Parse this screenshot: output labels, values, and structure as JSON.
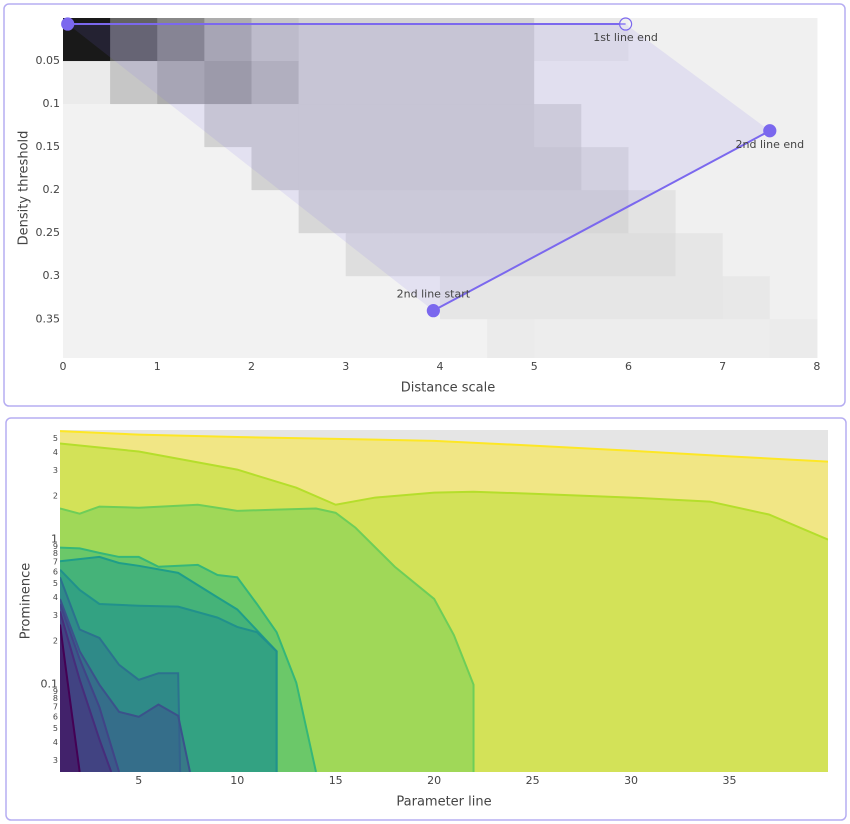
{
  "chart_data": [
    {
      "type": "heatmap",
      "xlabel": "Distance scale",
      "ylabel": "Density threshold",
      "xlim": [
        0,
        8.16
      ],
      "ylim": [
        0.395,
        0
      ],
      "xticks": [
        0,
        1,
        2,
        3,
        4,
        5,
        6,
        7,
        8
      ],
      "yticks": [
        0.05,
        0.1,
        0.15,
        0.2,
        0.25,
        0.3,
        0.35
      ],
      "xbins": [
        0,
        0.5,
        1,
        1.5,
        2,
        2.5,
        3,
        3.5,
        4,
        4.5,
        5,
        5.5,
        6,
        6.5,
        7,
        7.5,
        8
      ],
      "ybins": [
        0,
        0.05,
        0.1,
        0.15,
        0.2,
        0.25,
        0.3,
        0.35,
        0.4
      ],
      "z": [
        [
          0.9,
          0.6,
          0.45,
          0.3,
          0.2,
          0.15,
          0.15,
          0.15,
          0.15,
          0.15,
          0.06,
          0.06,
          0.03,
          0.03,
          0.03,
          0.03
        ],
        [
          0.05,
          0.2,
          0.3,
          0.35,
          0.25,
          0.15,
          0.15,
          0.15,
          0.15,
          0.15,
          0.03,
          0.03,
          0.03,
          0.03,
          0.03,
          0.03
        ],
        [
          0.02,
          0.02,
          0.02,
          0.15,
          0.15,
          0.15,
          0.15,
          0.15,
          0.15,
          0.15,
          0.12,
          0.03,
          0.03,
          0.03,
          0.03,
          0.03
        ],
        [
          0.02,
          0.02,
          0.02,
          0.02,
          0.15,
          0.15,
          0.15,
          0.15,
          0.15,
          0.15,
          0.15,
          0.1,
          0.03,
          0.03,
          0.03,
          0.03
        ],
        [
          0.02,
          0.02,
          0.02,
          0.02,
          0.02,
          0.13,
          0.13,
          0.13,
          0.13,
          0.13,
          0.13,
          0.13,
          0.08,
          0.03,
          0.03,
          0.03
        ],
        [
          0.02,
          0.02,
          0.02,
          0.02,
          0.02,
          0.02,
          0.1,
          0.1,
          0.1,
          0.1,
          0.1,
          0.1,
          0.1,
          0.07,
          0.03,
          0.03
        ],
        [
          0.02,
          0.02,
          0.02,
          0.02,
          0.02,
          0.02,
          0.02,
          0.02,
          0.07,
          0.07,
          0.07,
          0.07,
          0.07,
          0.07,
          0.06,
          0.03
        ],
        [
          0.02,
          0.02,
          0.02,
          0.02,
          0.02,
          0.02,
          0.02,
          0.02,
          0.02,
          0.05,
          0.04,
          0.04,
          0.04,
          0.04,
          0.04,
          0.05
        ]
      ],
      "colorscale": [
        "#f7f7f7",
        "#000000"
      ],
      "line_color": "#7b68ee",
      "lines": [
        {
          "x": [
            0.05,
            5.97
          ],
          "y": [
            0.007,
            0.007
          ],
          "symbols": [
            "circle",
            "circle-open"
          ],
          "end_label": "1st line end"
        },
        {
          "x": [
            3.93,
            7.5
          ],
          "y": [
            0.34,
            0.131
          ],
          "symbols": [
            "circle",
            "circle"
          ],
          "start_label": "2nd line start",
          "end_label": "2nd line end"
        }
      ]
    },
    {
      "type": "area",
      "log_y": true,
      "plot_bg": "#e5e5e5",
      "xlabel": "Parameter line",
      "ylabel": "Prominence",
      "xlim": [
        1,
        40
      ],
      "ylim": [
        0.025,
        5.7
      ],
      "xticks": [
        5,
        10,
        15,
        20,
        25,
        30,
        35
      ],
      "yticks": [
        5,
        4,
        3,
        2,
        1,
        {
          "value": 0.9,
          "label": "9"
        },
        {
          "value": 0.8,
          "label": "8"
        },
        {
          "value": 0.7,
          "label": "7"
        },
        {
          "value": 0.6,
          "label": "6"
        },
        {
          "value": 0.5,
          "label": "5"
        },
        {
          "value": 0.4,
          "label": "4"
        },
        {
          "value": 0.3,
          "label": "3"
        },
        {
          "value": 0.2,
          "label": "2"
        },
        0.1,
        {
          "value": 0.09,
          "label": "9"
        },
        {
          "value": 0.08,
          "label": "8"
        },
        {
          "value": 0.07,
          "label": "7"
        },
        {
          "value": 0.06,
          "label": "6"
        },
        {
          "value": 0.05,
          "label": "5"
        },
        {
          "value": 0.04,
          "label": "4"
        },
        {
          "value": 0.03,
          "label": "3"
        }
      ],
      "series": [
        {
          "color": "#fde725",
          "x": [
            1,
            5,
            10,
            15,
            20,
            25,
            30,
            35,
            40
          ],
          "values": [
            5.6,
            5.3,
            5.1,
            4.95,
            4.8,
            4.45,
            4.1,
            3.75,
            3.45
          ]
        },
        {
          "color": "#b5de2b",
          "x": [
            1,
            5,
            10,
            13,
            15,
            17,
            20,
            22,
            25,
            30,
            34,
            37,
            40
          ],
          "values": [
            4.6,
            4.05,
            3.04,
            2.28,
            1.74,
            1.95,
            2.11,
            2.14,
            2.07,
            1.95,
            1.83,
            1.49,
            1.0
          ]
        },
        {
          "color": "#6ece58",
          "x": [
            1,
            2,
            3,
            5,
            8,
            10,
            12,
            14,
            15,
            16,
            18,
            20,
            21,
            22,
            22
          ],
          "values": [
            1.64,
            1.51,
            1.69,
            1.66,
            1.74,
            1.58,
            1.61,
            1.64,
            1.53,
            1.21,
            0.65,
            0.39,
            0.22,
            0.1,
            0.025
          ]
        },
        {
          "color": "#35b779",
          "x": [
            1,
            2,
            3,
            4,
            5,
            6,
            8,
            9,
            10,
            11,
            12,
            13,
            14
          ],
          "values": [
            0.88,
            0.87,
            0.81,
            0.76,
            0.76,
            0.65,
            0.67,
            0.57,
            0.55,
            0.36,
            0.23,
            0.103,
            0.025
          ]
        },
        {
          "color": "#1f9e89",
          "x": [
            1,
            3,
            4,
            5,
            7,
            9,
            10,
            12,
            12
          ],
          "values": [
            0.71,
            0.76,
            0.69,
            0.66,
            0.59,
            0.4,
            0.33,
            0.17,
            0.025
          ]
        },
        {
          "color": "#21918c",
          "x": [
            1,
            2,
            3,
            5,
            7,
            9,
            10,
            11,
            12,
            12
          ],
          "values": [
            0.62,
            0.45,
            0.36,
            0.35,
            0.345,
            0.29,
            0.25,
            0.23,
            0.17,
            0.025
          ]
        },
        {
          "color": "#2c728e",
          "x": [
            1,
            2,
            3,
            4,
            5,
            6,
            7,
            7.1
          ],
          "values": [
            0.55,
            0.24,
            0.21,
            0.137,
            0.108,
            0.12,
            0.12,
            0.025
          ]
        },
        {
          "color": "#3b528b",
          "x": [
            1,
            2,
            3,
            4,
            5,
            6,
            7,
            7.6
          ],
          "values": [
            0.39,
            0.17,
            0.1,
            0.065,
            0.06,
            0.073,
            0.061,
            0.025
          ]
        },
        {
          "color": "#414487",
          "x": [
            1,
            2,
            3,
            4
          ],
          "values": [
            0.36,
            0.15,
            0.07,
            0.025
          ]
        },
        {
          "color": "#472d7b",
          "x": [
            1,
            2,
            3,
            3.6
          ],
          "values": [
            0.32,
            0.108,
            0.042,
            0.025
          ]
        },
        {
          "color": "#440154",
          "x": [
            1,
            1.5,
            2
          ],
          "values": [
            0.26,
            0.08,
            0.025
          ]
        }
      ]
    }
  ]
}
